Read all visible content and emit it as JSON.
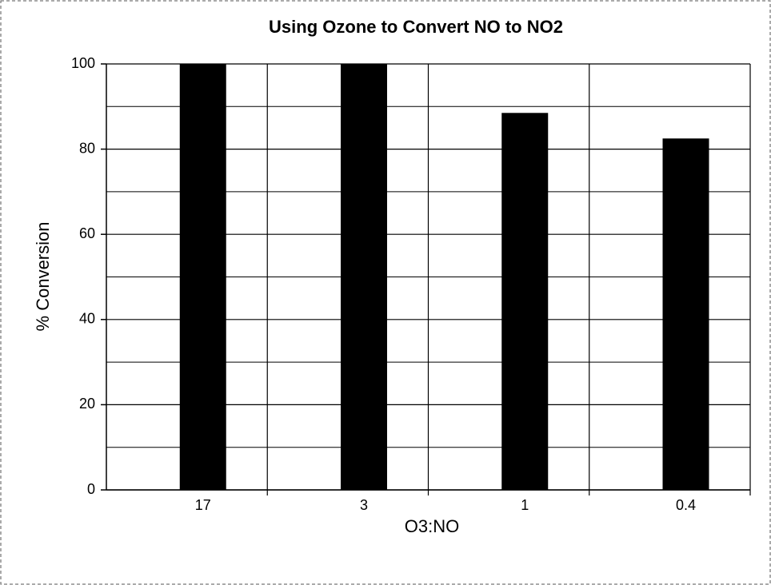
{
  "chart_data": {
    "type": "bar",
    "title": "Using Ozone to Convert NO to NO2",
    "x_label": "O3:NO",
    "y_label": "% Conversion",
    "categories": [
      "17",
      "3",
      "1",
      "0.4"
    ],
    "values": [
      100,
      100,
      88.5,
      82.5
    ],
    "color": "#000000",
    "ylim": [
      0,
      100
    ],
    "yticks": [
      0,
      20,
      40,
      60,
      80,
      100
    ],
    "minor_yticks": [
      10,
      30,
      50,
      70,
      90
    ],
    "grid": true
  }
}
